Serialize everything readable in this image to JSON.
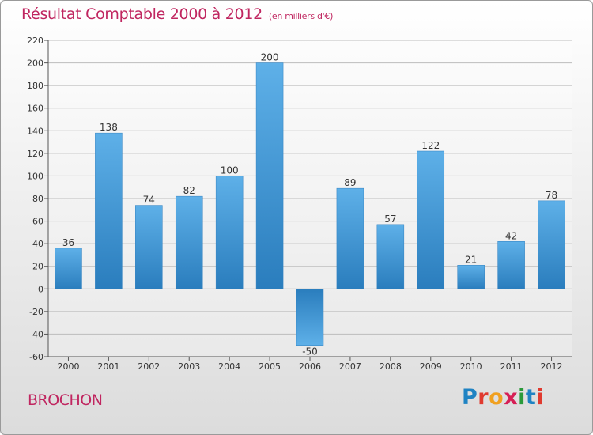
{
  "header": {
    "title": "Résultat Comptable 2000 à 2012",
    "subtitle": "(en milliers d'€)"
  },
  "footer": {
    "commune": "BROCHON",
    "logo": {
      "text": "Proxiti",
      "letter_colors": [
        "#1f83c3",
        "#e03a2f",
        "#f0a020",
        "#d61f55",
        "#2a9a3a",
        "#1f83c3",
        "#e03a2f"
      ]
    }
  },
  "colors": {
    "bar_light": "#5eb0e8",
    "bar_dark": "#2a7dbd",
    "title": "#c02660",
    "grid": "#bdbdbd"
  },
  "chart_data": {
    "type": "bar",
    "title": "Résultat Comptable 2000 à 2012",
    "subtitle": "(en milliers d'€)",
    "xlabel": "",
    "ylabel": "",
    "categories": [
      "2000",
      "2001",
      "2002",
      "2003",
      "2004",
      "2005",
      "2006",
      "2007",
      "2008",
      "2009",
      "2010",
      "2011",
      "2012"
    ],
    "values": [
      36,
      138,
      74,
      82,
      100,
      200,
      -50,
      89,
      57,
      122,
      21,
      42,
      78
    ],
    "ylim": [
      -60,
      220
    ],
    "yticks": [
      -60,
      -40,
      -20,
      0,
      20,
      40,
      60,
      80,
      100,
      120,
      140,
      160,
      180,
      200,
      220
    ],
    "grid": true
  }
}
